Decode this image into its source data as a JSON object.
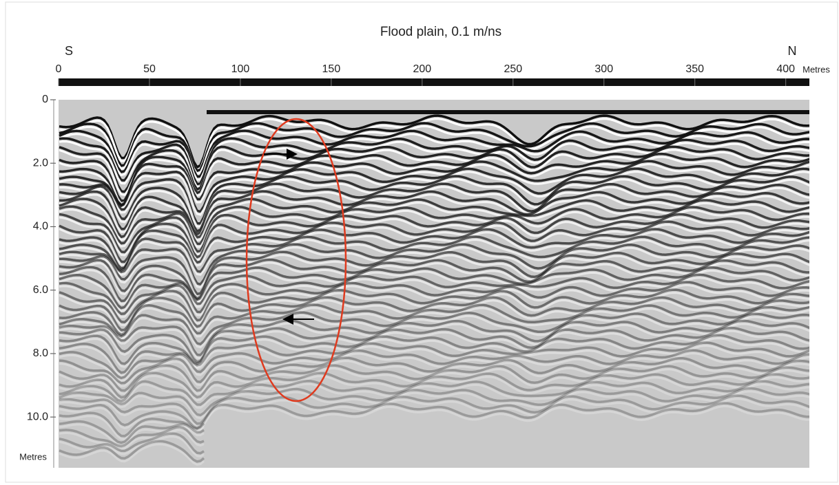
{
  "chart_data": {
    "type": "radargram",
    "title": "Flood plain, 0.1 m/ns",
    "x_start_label": "S",
    "x_end_label": "N",
    "x_unit_label": "Metres",
    "y_label": "Metres",
    "xlim": [
      0,
      413
    ],
    "xticks": [
      0,
      50,
      100,
      150,
      200,
      250,
      300,
      350,
      400
    ],
    "ylim": [
      0,
      11.6
    ],
    "yticks": [
      0,
      {
        "value": 2,
        "label": "2.0"
      },
      {
        "value": 4,
        "label": "4.0"
      },
      {
        "value": 6,
        "label": "6.0"
      },
      {
        "value": 8,
        "label": "8.0"
      },
      {
        "value": 10,
        "label": "10.0"
      }
    ]
  }
}
